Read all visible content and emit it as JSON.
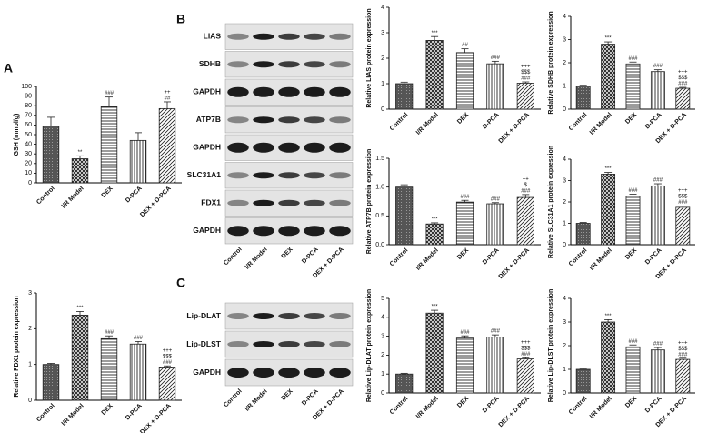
{
  "panel_labels": {
    "a": "A",
    "b": "B",
    "c": "C"
  },
  "blots": [
    {
      "rows": [
        "LIAS",
        "SDHB",
        "GAPDH",
        "ATP7B",
        "GAPDH",
        "SLC31A1",
        "FDX1",
        "GAPDH"
      ],
      "lanes": [
        "Control",
        "I/R Model",
        "DEX",
        "D-PCA",
        "DEX + D-PCA"
      ]
    },
    {
      "rows": [
        "Lip-DLAT",
        "Lip-DLST",
        "GAPDH"
      ],
      "lanes": [
        "Control",
        "I/R Model",
        "DEX",
        "D-PCA",
        "DEX + D-PCA"
      ]
    }
  ],
  "chart_data": [
    {
      "type": "bar",
      "y_label": "GSH (mmol/g)",
      "categories": [
        "Control",
        "I/R Model",
        "DEX",
        "D-PCA",
        "DEX + D-PCA"
      ],
      "values": [
        59,
        25,
        79,
        44,
        77
      ],
      "errors": [
        9,
        3,
        10,
        8,
        7
      ],
      "annotations": [
        [],
        [
          "**"
        ],
        [
          "###"
        ],
        [],
        [
          "++",
          "##"
        ]
      ],
      "ylim": [
        0,
        100
      ],
      "yticks": [
        0,
        10,
        20,
        30,
        40,
        50,
        60,
        70,
        80,
        90,
        100
      ],
      "color": "#222"
    },
    {
      "type": "bar",
      "y_label": "Relative LIAS protein expression",
      "categories": [
        "Control",
        "I/R Model",
        "DEX",
        "D-PCA",
        "DEX + D-PCA"
      ],
      "values": [
        1.0,
        2.7,
        2.22,
        1.78,
        1.02
      ],
      "errors": [
        0.06,
        0.15,
        0.15,
        0.1,
        0.05
      ],
      "annotations": [
        [],
        [
          "***"
        ],
        [
          "##"
        ],
        [
          "###"
        ],
        [
          "+++",
          "$$$",
          "###"
        ]
      ],
      "ylim": [
        0,
        4
      ],
      "yticks": [
        0,
        1,
        2,
        3,
        4
      ],
      "color": "#222"
    },
    {
      "type": "bar",
      "y_label": "Relative SDHB protein expression",
      "categories": [
        "Control",
        "I/R Model",
        "DEX",
        "D-PCA",
        "DEX + D-PCA"
      ],
      "values": [
        1.0,
        2.8,
        1.95,
        1.62,
        0.9
      ],
      "errors": [
        0.03,
        0.1,
        0.08,
        0.08,
        0.04
      ],
      "annotations": [
        [],
        [
          "***"
        ],
        [
          "###"
        ],
        [
          "###"
        ],
        [
          "+++",
          "$$$",
          "###"
        ]
      ],
      "ylim": [
        0,
        4
      ],
      "yticks": [
        0,
        1,
        2,
        3,
        4
      ],
      "color": "#222"
    },
    {
      "type": "bar",
      "y_label": "Relative ATP7B protein expression",
      "categories": [
        "Control",
        "I/R Model",
        "DEX",
        "D-PCA",
        "DEX + D-PCA"
      ],
      "values": [
        1.0,
        0.36,
        0.74,
        0.71,
        0.82
      ],
      "errors": [
        0.04,
        0.02,
        0.03,
        0.02,
        0.05
      ],
      "annotations": [
        [],
        [
          "***"
        ],
        [
          "###"
        ],
        [
          "###"
        ],
        [
          "++",
          "$",
          "###"
        ]
      ],
      "ylim": [
        0,
        1.5
      ],
      "yticks": [
        {
          "value": 0,
          "label": "0.0"
        },
        {
          "value": 0.5,
          "label": "0.5"
        },
        {
          "value": 1,
          "label": "1.0"
        },
        {
          "value": 1.5,
          "label": "1.5"
        }
      ],
      "color": "#222"
    },
    {
      "type": "bar",
      "y_label": "Relative SLC31A1 protein expression",
      "categories": [
        "Control",
        "I/R Model",
        "DEX",
        "D-PCA",
        "DEX + D-PCA"
      ],
      "values": [
        1.0,
        3.3,
        2.28,
        2.75,
        1.75
      ],
      "errors": [
        0.04,
        0.08,
        0.08,
        0.1,
        0.06
      ],
      "annotations": [
        [],
        [
          "***"
        ],
        [
          "###"
        ],
        [
          "###"
        ],
        [
          "+++",
          "$$$",
          "###"
        ]
      ],
      "ylim": [
        0,
        4
      ],
      "yticks": [
        0,
        1,
        2,
        3,
        4
      ],
      "color": "#222"
    },
    {
      "type": "bar",
      "y_label": "Relative FDX1 protein expression",
      "categories": [
        "Control",
        "I/R Model",
        "DEX",
        "D-PCA",
        "DEX + D-PCA"
      ],
      "values": [
        1.0,
        2.38,
        1.72,
        1.57,
        0.93
      ],
      "errors": [
        0.03,
        0.1,
        0.08,
        0.07,
        0.03
      ],
      "annotations": [
        [],
        [
          "***"
        ],
        [
          "###"
        ],
        [
          "###"
        ],
        [
          "+++",
          "$$$",
          "###"
        ]
      ],
      "ylim": [
        0,
        3
      ],
      "yticks": [
        0,
        1,
        2,
        3
      ],
      "color": "#222"
    },
    {
      "type": "bar",
      "y_label": "Relative Lip-DLAT protein expression",
      "categories": [
        "Control",
        "I/R Model",
        "DEX",
        "D-PCA",
        "DEX + D-PCA"
      ],
      "values": [
        1.0,
        4.22,
        2.9,
        2.95,
        1.8
      ],
      "errors": [
        0.04,
        0.15,
        0.12,
        0.12,
        0.06
      ],
      "annotations": [
        [],
        [
          "***"
        ],
        [
          "###"
        ],
        [
          "###"
        ],
        [
          "+++",
          "$$$",
          "###"
        ]
      ],
      "ylim": [
        0,
        5
      ],
      "yticks": [
        0,
        1,
        2,
        3,
        4,
        5
      ],
      "color": "#222"
    },
    {
      "type": "bar",
      "y_label": "Relative Lip-DLST protein expression",
      "categories": [
        "Control",
        "I/R Model",
        "DEX",
        "D-PCA",
        "DEX + D-PCA"
      ],
      "values": [
        1.0,
        3.0,
        1.95,
        1.82,
        1.42
      ],
      "errors": [
        0.04,
        0.1,
        0.08,
        0.1,
        0.05
      ],
      "annotations": [
        [],
        [
          "***"
        ],
        [
          "###"
        ],
        [
          "###"
        ],
        [
          "+++",
          "$$$",
          "###"
        ]
      ],
      "ylim": [
        0,
        4
      ],
      "yticks": [
        0,
        1,
        2,
        3,
        4
      ],
      "color": "#222"
    }
  ]
}
